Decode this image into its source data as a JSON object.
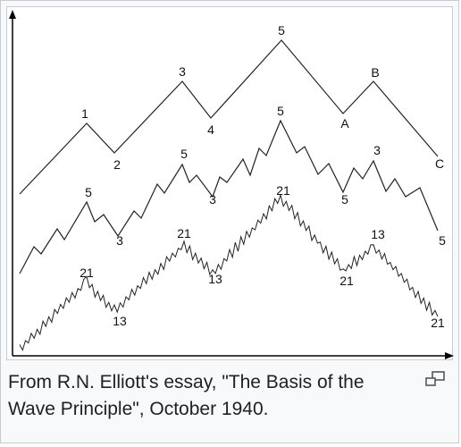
{
  "figure": {
    "caption": "From R.N. Elliott's essay, \"The Basis of the Wave Principle\", October 1940.",
    "enlarge_icon": "magnify-clip-icon"
  },
  "diagram": {
    "degrees": [
      {
        "labels": [
          "1",
          "2",
          "3",
          "4",
          "5",
          "A",
          "B",
          "C"
        ]
      },
      {
        "labels": [
          "5",
          "3",
          "5",
          "3",
          "5",
          "5",
          "3",
          "5"
        ]
      },
      {
        "labels": [
          "21",
          "13",
          "21",
          "13",
          "21",
          "21",
          "13",
          "21"
        ]
      }
    ]
  },
  "colors": {
    "line": "#222222",
    "axis": "#000000",
    "caption": "#202122",
    "border": "#c8ccd1",
    "background": "#f8f9fa"
  }
}
